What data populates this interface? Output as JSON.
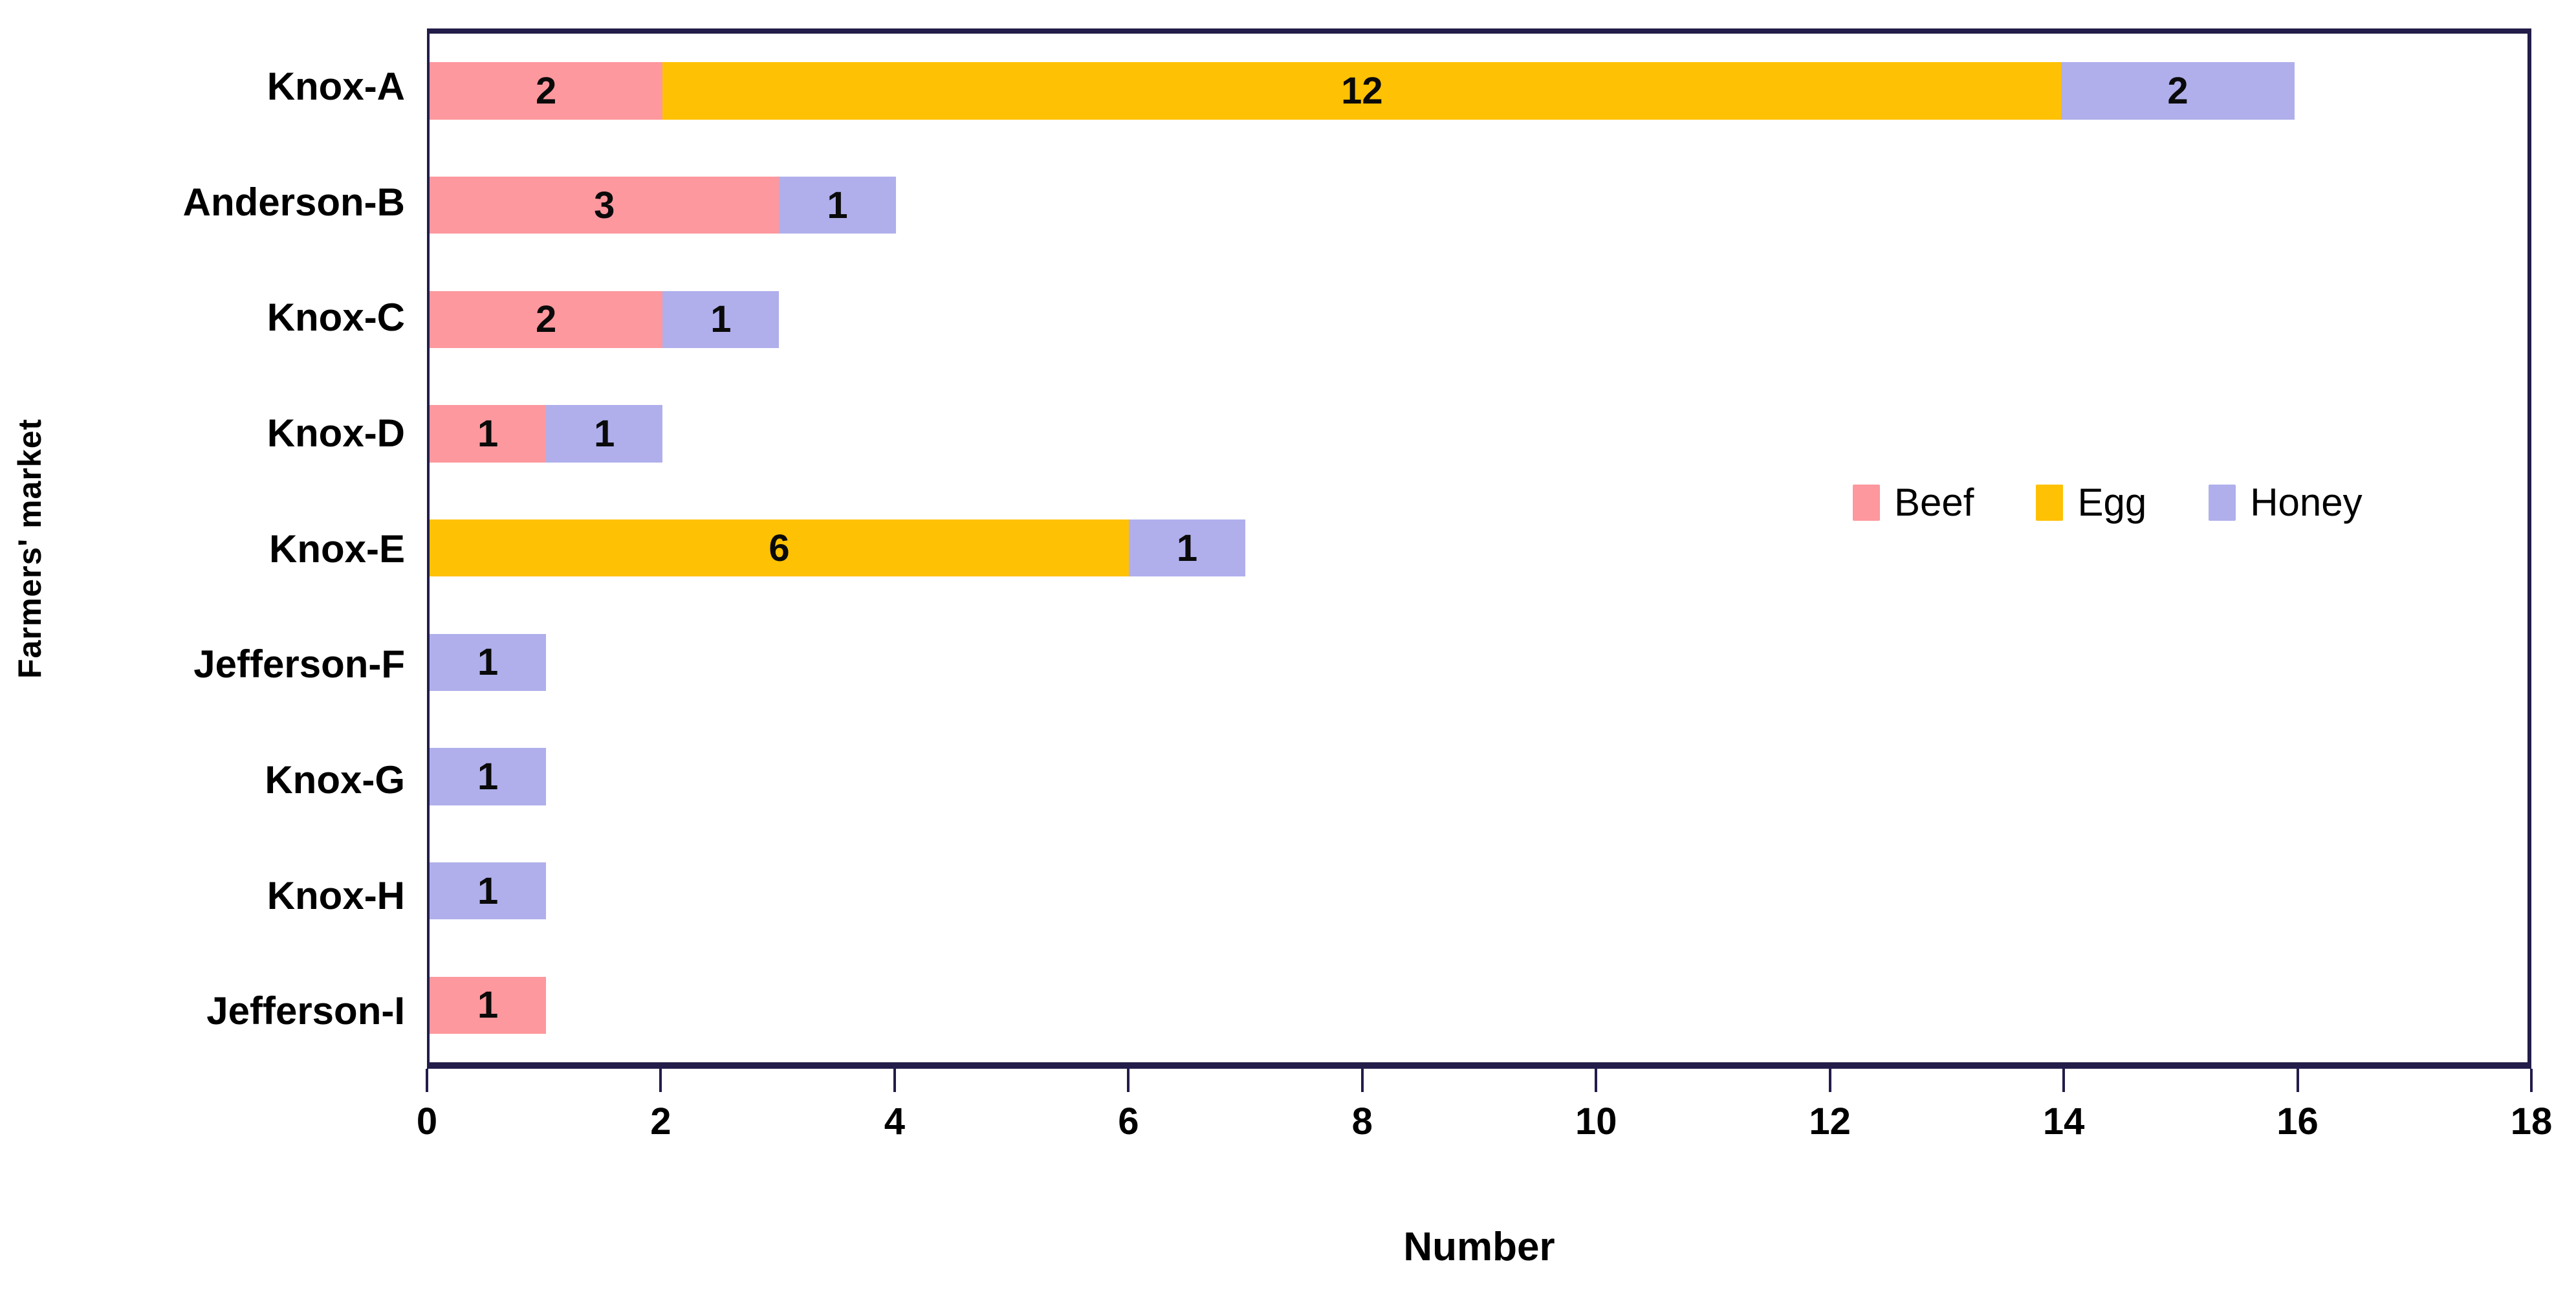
{
  "chart_data": {
    "type": "bar",
    "orientation": "horizontal",
    "stacked": true,
    "title": "",
    "xlabel": "Number",
    "ylabel": "Farmers' market",
    "xlim": [
      0,
      18
    ],
    "xticks": [
      0,
      2,
      4,
      6,
      8,
      10,
      12,
      14,
      16,
      18
    ],
    "grid": false,
    "legend_position": "middle-right",
    "categories": [
      "Knox-A",
      "Anderson-B",
      "Knox-C",
      "Knox-D",
      "Knox-E",
      "Jefferson-F",
      "Knox-G",
      "Knox-H",
      "Jefferson-I"
    ],
    "series": [
      {
        "name": "Beef",
        "color": "#FD989E",
        "values": [
          2,
          3,
          2,
          1,
          0,
          0,
          0,
          0,
          1
        ]
      },
      {
        "name": "Egg",
        "color": "#FFC103",
        "values": [
          12,
          0,
          0,
          0,
          6,
          0,
          0,
          0,
          0
        ]
      },
      {
        "name": "Honey",
        "color": "#B0AFEC",
        "values": [
          2,
          1,
          1,
          1,
          1,
          1,
          1,
          1,
          0
        ]
      }
    ],
    "totals": [
      16,
      4,
      3,
      2,
      7,
      1,
      1,
      1,
      1
    ],
    "axis_color": "#221d49"
  }
}
